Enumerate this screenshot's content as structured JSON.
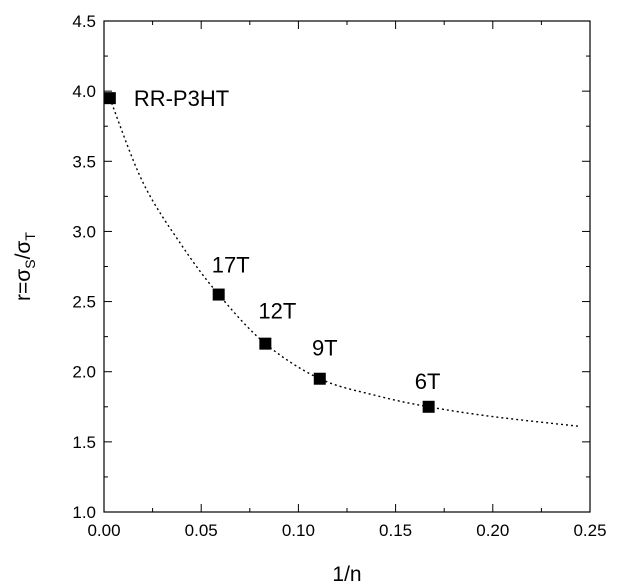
{
  "chart_data": {
    "type": "scatter",
    "xlabel": "1/n",
    "ylabel": {
      "base": "r=σ",
      "sub1": "S",
      "mid": "/σ",
      "sub2": "T"
    },
    "xlim": [
      0.0,
      0.25
    ],
    "ylim": [
      1.0,
      4.5
    ],
    "x_ticks": [
      "0.00",
      "0.05",
      "0.10",
      "0.15",
      "0.20",
      "0.25"
    ],
    "y_ticks": [
      "1.0",
      "1.5",
      "2.0",
      "2.5",
      "3.0",
      "3.5",
      "4.0",
      "4.5"
    ],
    "grid": false,
    "points": [
      {
        "label": "RR-P3HT",
        "x": 0.003,
        "y": 3.95
      },
      {
        "label": "17T",
        "x": 0.059,
        "y": 2.55
      },
      {
        "label": "12T",
        "x": 0.083,
        "y": 2.2
      },
      {
        "label": "9T",
        "x": 0.111,
        "y": 1.95
      },
      {
        "label": "6T",
        "x": 0.167,
        "y": 1.75
      }
    ],
    "fit_curve": {
      "style": "dotted",
      "points": [
        [
          0.003,
          3.95
        ],
        [
          0.02,
          3.35
        ],
        [
          0.04,
          2.9
        ],
        [
          0.059,
          2.55
        ],
        [
          0.083,
          2.2
        ],
        [
          0.111,
          1.95
        ],
        [
          0.14,
          1.83
        ],
        [
          0.167,
          1.75
        ],
        [
          0.2,
          1.68
        ],
        [
          0.245,
          1.61
        ]
      ]
    },
    "marker_color": "#000000",
    "line_color": "#000000"
  }
}
